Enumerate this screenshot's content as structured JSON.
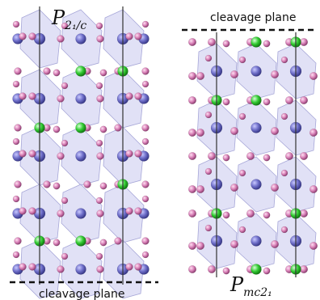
{
  "left_panel": {
    "space_group_base": "P",
    "space_group_sub": "2₁/c",
    "cleavage_label": "cleavage plane"
  },
  "right_panel": {
    "space_group_base": "P",
    "space_group_sub": "mc2₁",
    "cleavage_label": "cleavage plane"
  },
  "colors": {
    "polyhedron_fill": "#c9c9ee",
    "polyhedron_stroke": "#a7a7d8",
    "atom_blue": "#6f6fc9",
    "atom_pink": "#d982b8",
    "atom_green": "#33cc33",
    "line": "#222222"
  },
  "legend": {
    "atom_types": [
      "blue",
      "pink",
      "green"
    ]
  }
}
